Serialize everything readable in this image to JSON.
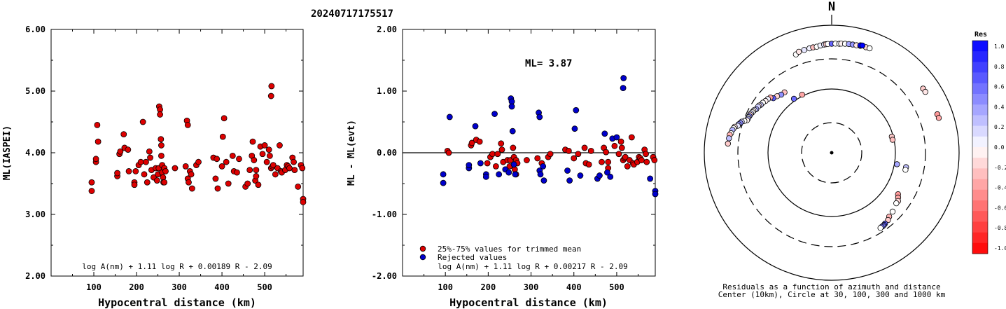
{
  "title": "20240717175517",
  "chart_data": [
    {
      "type": "scatter",
      "ylabel": "ML(IASPEI)",
      "xlabel": "Hypocentral distance (km)",
      "xlim": [
        0,
        590
      ],
      "ylim": [
        2.0,
        6.0
      ],
      "xticks": [
        100,
        200,
        300,
        400,
        500
      ],
      "yticks": [
        2.0,
        3.0,
        4.0,
        5.0,
        6.0
      ],
      "ytick_labels": [
        "2.00",
        "3.00",
        "4.00",
        "5.00",
        "6.00"
      ],
      "formula": "log A(nm) + 1.11 log R + 0.00189 R - 2.09",
      "marker_color": "#dd0000",
      "points": [
        [
          95,
          3.52
        ],
        [
          95,
          3.38
        ],
        [
          105,
          3.85
        ],
        [
          105,
          3.9
        ],
        [
          108,
          4.45
        ],
        [
          110,
          4.18
        ],
        [
          155,
          3.62
        ],
        [
          155,
          3.67
        ],
        [
          160,
          3.98
        ],
        [
          162,
          4.02
        ],
        [
          170,
          4.3
        ],
        [
          172,
          4.08
        ],
        [
          180,
          4.05
        ],
        [
          182,
          3.7
        ],
        [
          195,
          3.52
        ],
        [
          195,
          3.48
        ],
        [
          198,
          3.7
        ],
        [
          205,
          3.8
        ],
        [
          210,
          3.85
        ],
        [
          215,
          4.5
        ],
        [
          218,
          3.65
        ],
        [
          222,
          3.85
        ],
        [
          225,
          3.52
        ],
        [
          230,
          4.02
        ],
        [
          232,
          3.92
        ],
        [
          235,
          3.72
        ],
        [
          240,
          3.6
        ],
        [
          245,
          3.75
        ],
        [
          248,
          3.55
        ],
        [
          250,
          3.65
        ],
        [
          252,
          3.75
        ],
        [
          253,
          4.75
        ],
        [
          255,
          4.7
        ],
        [
          255,
          4.62
        ],
        [
          257,
          4.22
        ],
        [
          258,
          4.12
        ],
        [
          258,
          3.95
        ],
        [
          260,
          3.8
        ],
        [
          260,
          3.68
        ],
        [
          262,
          3.6
        ],
        [
          263,
          3.52
        ],
        [
          265,
          3.75
        ],
        [
          265,
          3.52
        ],
        [
          268,
          3.7
        ],
        [
          290,
          3.75
        ],
        [
          315,
          3.78
        ],
        [
          318,
          4.52
        ],
        [
          320,
          4.45
        ],
        [
          320,
          3.58
        ],
        [
          322,
          3.52
        ],
        [
          325,
          3.7
        ],
        [
          328,
          3.65
        ],
        [
          330,
          3.42
        ],
        [
          340,
          3.8
        ],
        [
          345,
          3.85
        ],
        [
          380,
          3.92
        ],
        [
          385,
          3.58
        ],
        [
          388,
          3.9
        ],
        [
          390,
          3.42
        ],
        [
          400,
          3.78
        ],
        [
          402,
          4.26
        ],
        [
          405,
          4.56
        ],
        [
          410,
          3.85
        ],
        [
          415,
          3.5
        ],
        [
          425,
          3.95
        ],
        [
          428,
          3.7
        ],
        [
          435,
          3.68
        ],
        [
          440,
          3.9
        ],
        [
          455,
          3.45
        ],
        [
          460,
          3.5
        ],
        [
          465,
          3.72
        ],
        [
          470,
          3.95
        ],
        [
          472,
          4.18
        ],
        [
          475,
          3.88
        ],
        [
          478,
          3.55
        ],
        [
          480,
          3.62
        ],
        [
          480,
          3.72
        ],
        [
          485,
          3.48
        ],
        [
          490,
          4.1
        ],
        [
          495,
          3.98
        ],
        [
          500,
          4.12
        ],
        [
          505,
          3.85
        ],
        [
          510,
          4.05
        ],
        [
          512,
          3.95
        ],
        [
          515,
          3.75
        ],
        [
          515,
          4.92
        ],
        [
          516,
          5.08
        ],
        [
          518,
          3.78
        ],
        [
          520,
          3.8
        ],
        [
          525,
          3.65
        ],
        [
          530,
          3.75
        ],
        [
          535,
          4.12
        ],
        [
          538,
          3.7
        ],
        [
          540,
          3.68
        ],
        [
          548,
          3.72
        ],
        [
          552,
          3.8
        ],
        [
          555,
          3.78
        ],
        [
          558,
          3.75
        ],
        [
          565,
          3.92
        ],
        [
          568,
          3.85
        ],
        [
          570,
          3.72
        ],
        [
          578,
          3.45
        ],
        [
          585,
          3.8
        ],
        [
          588,
          3.75
        ],
        [
          590,
          3.25
        ],
        [
          590,
          3.2
        ]
      ]
    },
    {
      "type": "scatter",
      "ylabel": "ML - ML(evt)",
      "xlabel": "Hypocentral distance (km)",
      "xlim": [
        0,
        590
      ],
      "ylim": [
        -2.0,
        2.0
      ],
      "xticks": [
        100,
        200,
        300,
        400,
        500
      ],
      "yticks": [
        -2.0,
        -1.0,
        0.0,
        1.0,
        2.0
      ],
      "ytick_labels": [
        "-2.00",
        "-1.00",
        "0.00",
        "1.00",
        "2.00"
      ],
      "annotation": "ML= 3.87",
      "formula": "log A(nm) + 1.11 log R + 0.00217 R - 2.09",
      "reference_line": 0.0,
      "legend": [
        {
          "label": "25%-75% values for trimmed mean",
          "color": "#dd0000"
        },
        {
          "label": "Rejected values",
          "color": "#0000cc"
        }
      ],
      "series": [
        {
          "name": "25%-75% values for trimmed mean",
          "color": "#dd0000",
          "points": [
            [
              105,
              0.03
            ],
            [
              108,
              0.0
            ],
            [
              160,
              0.12
            ],
            [
              162,
              0.16
            ],
            [
              172,
              0.21
            ],
            [
              180,
              0.18
            ],
            [
              198,
              -0.17
            ],
            [
              205,
              -0.07
            ],
            [
              210,
              -0.02
            ],
            [
              218,
              -0.22
            ],
            [
              222,
              -0.02
            ],
            [
              230,
              0.15
            ],
            [
              232,
              0.05
            ],
            [
              235,
              -0.15
            ],
            [
              245,
              -0.12
            ],
            [
              250,
              -0.22
            ],
            [
              252,
              -0.12
            ],
            [
              258,
              0.08
            ],
            [
              260,
              -0.07
            ],
            [
              262,
              -0.27
            ],
            [
              265,
              -0.12
            ],
            [
              265,
              -0.35
            ],
            [
              268,
              -0.17
            ],
            [
              290,
              -0.12
            ],
            [
              315,
              -0.09
            ],
            [
              325,
              -0.17
            ],
            [
              340,
              -0.07
            ],
            [
              345,
              -0.02
            ],
            [
              380,
              0.05
            ],
            [
              388,
              0.03
            ],
            [
              400,
              -0.09
            ],
            [
              410,
              -0.02
            ],
            [
              425,
              0.08
            ],
            [
              428,
              -0.17
            ],
            [
              435,
              -0.19
            ],
            [
              440,
              0.03
            ],
            [
              465,
              -0.15
            ],
            [
              470,
              0.08
            ],
            [
              475,
              0.01
            ],
            [
              480,
              -0.25
            ],
            [
              480,
              -0.15
            ],
            [
              495,
              0.11
            ],
            [
              505,
              -0.02
            ],
            [
              510,
              0.18
            ],
            [
              512,
              0.08
            ],
            [
              515,
              -0.12
            ],
            [
              518,
              -0.09
            ],
            [
              520,
              -0.07
            ],
            [
              525,
              -0.22
            ],
            [
              530,
              -0.12
            ],
            [
              535,
              0.25
            ],
            [
              538,
              -0.17
            ],
            [
              540,
              -0.19
            ],
            [
              548,
              -0.15
            ],
            [
              552,
              -0.07
            ],
            [
              555,
              -0.09
            ],
            [
              558,
              -0.12
            ],
            [
              565,
              0.05
            ],
            [
              568,
              -0.02
            ],
            [
              570,
              -0.15
            ],
            [
              585,
              -0.07
            ],
            [
              588,
              -0.12
            ]
          ]
        },
        {
          "name": "Rejected values",
          "color": "#0000cc",
          "points": [
            [
              95,
              -0.35
            ],
            [
              95,
              -0.49
            ],
            [
              110,
              0.58
            ],
            [
              155,
              -0.25
            ],
            [
              155,
              -0.2
            ],
            [
              170,
              0.43
            ],
            [
              182,
              -0.17
            ],
            [
              195,
              -0.35
            ],
            [
              195,
              -0.39
            ],
            [
              215,
              0.63
            ],
            [
              225,
              -0.35
            ],
            [
              240,
              -0.27
            ],
            [
              248,
              -0.32
            ],
            [
              253,
              0.88
            ],
            [
              255,
              0.83
            ],
            [
              255,
              0.75
            ],
            [
              257,
              0.35
            ],
            [
              260,
              -0.19
            ],
            [
              263,
              -0.35
            ],
            [
              318,
              0.65
            ],
            [
              320,
              0.58
            ],
            [
              320,
              -0.29
            ],
            [
              322,
              -0.35
            ],
            [
              328,
              -0.22
            ],
            [
              330,
              -0.45
            ],
            [
              385,
              -0.29
            ],
            [
              390,
              -0.45
            ],
            [
              402,
              0.39
            ],
            [
              405,
              0.69
            ],
            [
              415,
              -0.37
            ],
            [
              455,
              -0.42
            ],
            [
              460,
              -0.37
            ],
            [
              472,
              0.31
            ],
            [
              478,
              -0.32
            ],
            [
              485,
              -0.39
            ],
            [
              490,
              0.23
            ],
            [
              500,
              0.25
            ],
            [
              515,
              1.05
            ],
            [
              516,
              1.21
            ],
            [
              578,
              -0.42
            ],
            [
              590,
              -0.62
            ],
            [
              590,
              -0.67
            ]
          ]
        }
      ]
    },
    {
      "type": "scatter",
      "title": "N",
      "caption_line1": "Residuals as a function of azimuth and distance",
      "caption_line2": "Center (10km), Circle at 30, 100, 300 and 1000 km",
      "colorbar_title": "Res",
      "colorbar_ticks": [
        "1.0",
        "0.8",
        "0.6",
        "0.4",
        "0.2",
        "0.0",
        "-0.2",
        "-0.4",
        "-0.6",
        "-0.8",
        "-1.0"
      ],
      "colorbar_range": [
        -1.0,
        1.0
      ],
      "colorbar_high_color": "#0000ff",
      "colorbar_low_color": "#ff0000",
      "stations": [
        [
          -27,
          -0.35
        ],
        [
          -35,
          0.58
        ],
        [
          -38,
          -0.25
        ],
        [
          -41,
          0.43
        ],
        [
          -44,
          -0.17
        ],
        [
          -47,
          0.63
        ],
        [
          -48,
          -0.35
        ],
        [
          -50,
          0.05
        ],
        [
          -52,
          -0.05
        ],
        [
          -54,
          0.0
        ],
        [
          -56,
          0.22
        ],
        [
          -57,
          -0.1
        ],
        [
          -58,
          0.18
        ],
        [
          -60,
          0.35
        ],
        [
          -61,
          0.1
        ],
        [
          -62,
          -0.05
        ],
        [
          -63,
          0.0
        ],
        [
          -64,
          0.15
        ],
        [
          -65,
          -0.15
        ],
        [
          -66,
          0.5
        ],
        [
          -67,
          0.05
        ],
        [
          -68,
          0.3
        ],
        [
          -69,
          -0.05
        ],
        [
          -70,
          0.0
        ],
        [
          -71,
          0.2
        ],
        [
          -72,
          0.45
        ],
        [
          -73,
          0.4
        ],
        [
          -74,
          0.1
        ],
        [
          -75,
          -0.1
        ],
        [
          -76,
          0.0
        ],
        [
          -77,
          0.3
        ],
        [
          -79,
          0.0
        ],
        [
          -80,
          -0.3
        ],
        [
          -82,
          0.25
        ],
        [
          -85,
          -0.2
        ],
        [
          -20,
          0.0
        ],
        [
          -18,
          -0.1
        ],
        [
          -15,
          0.1
        ],
        [
          -12,
          0.05
        ],
        [
          -10,
          -0.25
        ],
        [
          -8,
          0.0
        ],
        [
          -6,
          0.05
        ],
        [
          -4,
          0.1
        ],
        [
          -3,
          -0.2
        ],
        [
          -2,
          0.0
        ],
        [
          0,
          0.6
        ],
        [
          2,
          0.0
        ],
        [
          4,
          0.05
        ],
        [
          5,
          -0.05
        ],
        [
          7,
          0.0
        ],
        [
          9,
          0.35
        ],
        [
          11,
          0.4
        ],
        [
          13,
          -0.1
        ],
        [
          15,
          0.0
        ],
        [
          18,
          -0.15
        ],
        [
          20,
          0.0
        ],
        [
          15,
          1.05
        ],
        [
          16,
          1.21
        ],
        [
          55,
          -0.2
        ],
        [
          57,
          -0.1
        ],
        [
          70,
          -0.4
        ],
        [
          72,
          -0.35
        ],
        [
          75,
          -0.2
        ],
        [
          78,
          -0.25
        ],
        [
          100,
          0.35
        ],
        [
          101,
          0.25
        ],
        [
          103,
          0.0
        ],
        [
          122,
          -0.4
        ],
        [
          124,
          -0.35
        ],
        [
          126,
          -0.15
        ],
        [
          128,
          0.0
        ],
        [
          134,
          0.0
        ],
        [
          138,
          -0.3
        ],
        [
          140,
          -0.2
        ],
        [
          143,
          0.6
        ],
        [
          144,
          0.65
        ],
        [
          145,
          0.5
        ],
        [
          146,
          0.55
        ],
        [
          147,
          0.0
        ]
      ]
    }
  ]
}
